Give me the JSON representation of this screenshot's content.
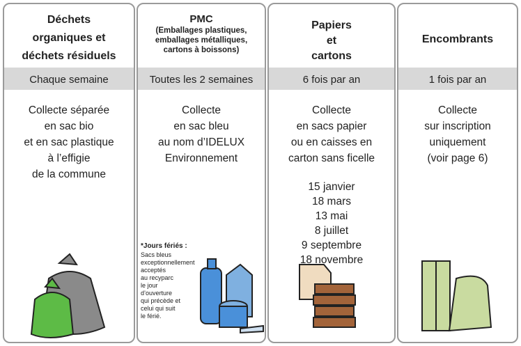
{
  "columns": [
    {
      "title": [
        "Déchets",
        "organiques et",
        "déchets résiduels"
      ],
      "frequency": "Chaque semaine",
      "description": [
        "Collecte séparée",
        "en sac bio",
        "et en sac plastique",
        "à l’effigie",
        "de la commune"
      ]
    },
    {
      "title": [
        "PMC"
      ],
      "subtitle": [
        "(Emballages plastiques,",
        "emballages métalliques,",
        "cartons à boissons)"
      ],
      "frequency": "Toutes les 2 semaines",
      "description": [
        "Collecte",
        "en sac bleu",
        "au nom d’IDELUX",
        "Environnement"
      ],
      "note_title": "*Jours fériés :",
      "note": [
        "Sacs bleus",
        "exceptionnellement",
        "acceptés",
        "au recyparc",
        "le jour",
        "d’ouverture",
        "qui précède et",
        "celui qui suit",
        "le férié."
      ]
    },
    {
      "title": [
        "Papiers",
        "et",
        "cartons"
      ],
      "frequency": "6 fois par an",
      "description": [
        "Collecte",
        "en sacs papier",
        "ou en caisses en",
        "carton sans ficelle"
      ],
      "dates": [
        "15 janvier",
        "18 mars",
        "13 mai",
        "8 juillet",
        "9 septembre",
        "18 novembre"
      ]
    },
    {
      "title": [
        "Encombrants"
      ],
      "frequency": "1 fois par an",
      "description": [
        "Collecte",
        "sur inscription",
        "uniquement",
        "(voir page 6)"
      ]
    }
  ]
}
